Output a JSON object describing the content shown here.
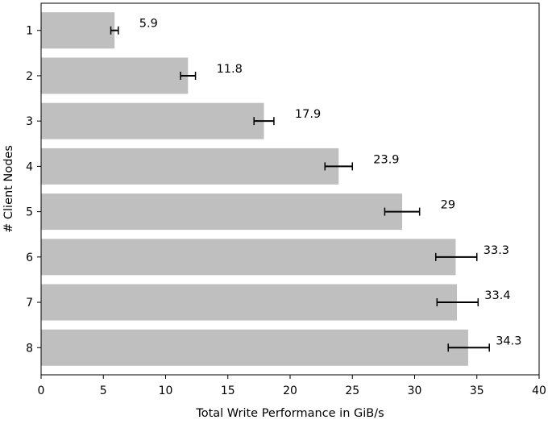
{
  "chart_data": {
    "type": "bar",
    "orientation": "horizontal",
    "categories": [
      "1",
      "2",
      "3",
      "4",
      "5",
      "6",
      "7",
      "8"
    ],
    "values": [
      5.9,
      11.8,
      17.9,
      23.9,
      29,
      33.3,
      33.4,
      34.3
    ],
    "error_low": [
      5.6,
      11.2,
      17.1,
      22.8,
      27.6,
      31.7,
      31.8,
      32.7
    ],
    "error_high": [
      6.2,
      12.4,
      18.7,
      25.0,
      30.4,
      35.0,
      35.1,
      36.0
    ],
    "data_labels": [
      "5.9",
      "11.8",
      "17.9",
      "23.9",
      "29",
      "33.3",
      "33.4",
      "34.3"
    ],
    "xlabel": "Total Write Performance in GiB/s",
    "ylabel": "# Client Nodes",
    "xlim": [
      0,
      40
    ],
    "xticks": [
      0,
      5,
      10,
      15,
      20,
      25,
      30,
      35,
      40
    ],
    "xtick_labels": [
      "0",
      "5",
      "10",
      "15",
      "20",
      "25",
      "30",
      "35",
      "40"
    ],
    "y_inverted": true,
    "grid": false,
    "legend": "none",
    "colors": {
      "bar": "#bfbfbf",
      "error_bar": "#000000",
      "axes": "#000000"
    }
  }
}
